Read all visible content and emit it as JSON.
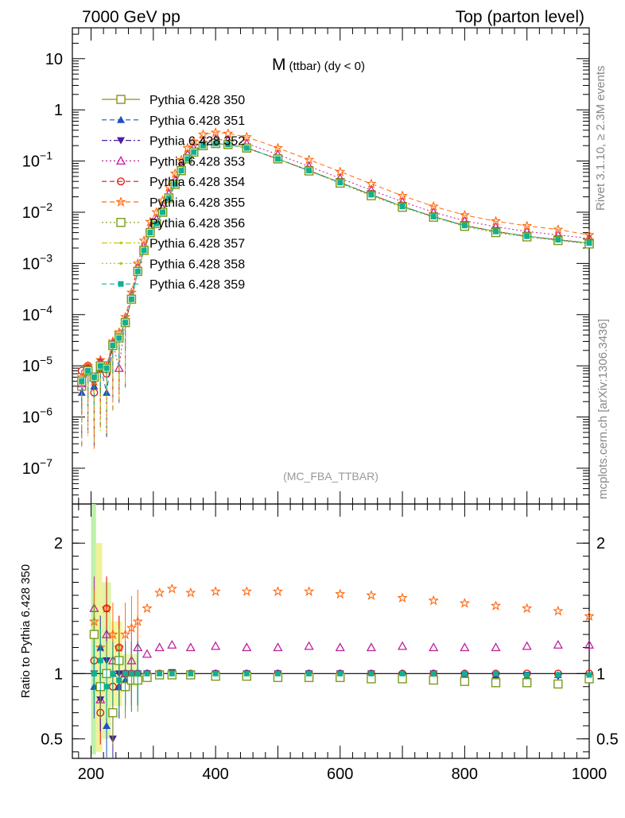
{
  "header": {
    "left": "7000 GeV pp",
    "right": "Top (parton level)"
  },
  "side": {
    "rivet": "Rivet 3.1.10, ≥ 2.3M events",
    "mcplots": "mcplots.cern.ch [arXiv:1306.3436]"
  },
  "chart_data": [
    {
      "type": "line",
      "panel": "main",
      "title_main": "M",
      "title_sub": "(ttbar) (dy < 0)",
      "analysis_label": "(MC_FBA_TTBAR)",
      "xlabel": "",
      "ylabel": "",
      "xlim": [
        170,
        1000
      ],
      "ylim": [
        2e-08,
        40
      ],
      "yscale": "log",
      "x_ticks": [],
      "y_tick_labels": [
        "10",
        "1",
        "10^-1",
        "10^-2",
        "10^-3",
        "10^-4",
        "10^-5",
        "10^-6",
        "10^-7"
      ],
      "legend_position": "top-left",
      "x": [
        185,
        195,
        205,
        215,
        225,
        235,
        245,
        255,
        265,
        275,
        285,
        295,
        305,
        315,
        325,
        335,
        345,
        355,
        365,
        380,
        400,
        420,
        450,
        500,
        550,
        600,
        650,
        700,
        750,
        800,
        850,
        900,
        950,
        1000
      ],
      "series": [
        {
          "name": "Pythia 6.428 350",
          "color": "#8f8f20",
          "marker": "open-square",
          "dash": "solid",
          "values": [
            4e-06,
            8e-06,
            6e-06,
            9e-06,
            1e-05,
            2.5e-05,
            4e-05,
            7e-05,
            0.0002,
            0.0007,
            0.0018,
            0.004,
            0.006,
            0.01,
            0.019,
            0.035,
            0.065,
            0.11,
            0.15,
            0.2,
            0.22,
            0.21,
            0.18,
            0.11,
            0.065,
            0.038,
            0.022,
            0.013,
            0.0082,
            0.0055,
            0.0042,
            0.0034,
            0.0029,
            0.0025
          ]
        },
        {
          "name": "Pythia 6.428 351",
          "color": "#1f4fbf",
          "marker": "filled-triangle-up",
          "dash": "dashed",
          "values": [
            3e-06,
            8e-06,
            4e-06,
            1e-05,
            3e-06,
            2.5e-05,
            3.5e-05,
            7e-05,
            0.0002,
            0.0007,
            0.0018,
            0.004,
            0.006,
            0.01,
            0.019,
            0.035,
            0.065,
            0.11,
            0.15,
            0.2,
            0.22,
            0.21,
            0.18,
            0.11,
            0.065,
            0.038,
            0.022,
            0.013,
            0.0082,
            0.0055,
            0.0042,
            0.0034,
            0.0029,
            0.0025
          ]
        },
        {
          "name": "Pythia 6.428 352",
          "color": "#4a1fa0",
          "marker": "filled-triangle-down",
          "dash": "dashdot",
          "values": [
            5e-06,
            9e-06,
            5e-06,
            1.2e-05,
            8e-06,
            2.5e-05,
            3.5e-05,
            7e-05,
            0.0002,
            0.0007,
            0.0018,
            0.004,
            0.006,
            0.01,
            0.019,
            0.035,
            0.065,
            0.11,
            0.15,
            0.2,
            0.22,
            0.21,
            0.18,
            0.11,
            0.065,
            0.038,
            0.022,
            0.013,
            0.0082,
            0.0055,
            0.0042,
            0.0034,
            0.0029,
            0.0025
          ]
        },
        {
          "name": "Pythia 6.428 353",
          "color": "#c0209a",
          "marker": "open-triangle-up",
          "dash": "dotted",
          "values": [
            4.5e-06,
            9e-06,
            6e-06,
            1.2e-05,
            9e-06,
            2.8e-05,
            9e-06,
            8e-05,
            0.00024,
            0.00085,
            0.0022,
            0.0048,
            0.0073,
            0.012,
            0.023,
            0.042,
            0.079,
            0.134,
            0.18,
            0.24,
            0.265,
            0.255,
            0.22,
            0.134,
            0.079,
            0.046,
            0.027,
            0.016,
            0.01,
            0.0068,
            0.0052,
            0.0042,
            0.0036,
            0.0031
          ]
        },
        {
          "name": "Pythia 6.428 354",
          "color": "#e01010",
          "marker": "open-circle",
          "dash": "dashed",
          "values": [
            8e-06,
            1e-05,
            3e-06,
            9e-06,
            7e-06,
            2.6e-05,
            3.6e-05,
            7e-05,
            0.0002,
            0.0007,
            0.0018,
            0.004,
            0.006,
            0.01,
            0.019,
            0.035,
            0.065,
            0.11,
            0.15,
            0.2,
            0.22,
            0.21,
            0.18,
            0.11,
            0.065,
            0.038,
            0.022,
            0.013,
            0.0082,
            0.0055,
            0.0042,
            0.0034,
            0.0029,
            0.0025
          ]
        },
        {
          "name": "Pythia 6.428 355",
          "color": "#ff6a10",
          "marker": "open-star",
          "dash": "dashed",
          "values": [
            6e-06,
            1e-05,
            5e-06,
            1.3e-05,
            1e-05,
            3e-05,
            4.5e-05,
            9e-05,
            0.00027,
            0.001,
            0.0028,
            0.0065,
            0.01,
            0.017,
            0.031,
            0.057,
            0.105,
            0.18,
            0.24,
            0.33,
            0.36,
            0.345,
            0.295,
            0.18,
            0.106,
            0.062,
            0.036,
            0.021,
            0.013,
            0.0088,
            0.0067,
            0.0054,
            0.0046,
            0.0036
          ]
        },
        {
          "name": "Pythia 6.428 356",
          "color": "#7a9a1a",
          "marker": "open-square",
          "dash": "dotted",
          "values": [
            5e-06,
            8e-06,
            6e-06,
            1e-05,
            9e-06,
            2.5e-05,
            3.5e-05,
            7e-05,
            0.0002,
            0.0007,
            0.0018,
            0.004,
            0.006,
            0.01,
            0.019,
            0.035,
            0.065,
            0.11,
            0.15,
            0.2,
            0.22,
            0.21,
            0.18,
            0.11,
            0.064,
            0.037,
            0.021,
            0.0125,
            0.008,
            0.0053,
            0.004,
            0.0033,
            0.0028,
            0.0024
          ]
        },
        {
          "name": "Pythia 6.428 357",
          "color": "#c8c81a",
          "marker": "dot",
          "dash": "dashdot",
          "values": [
            5e-06,
            8e-06,
            6e-06,
            1e-05,
            9e-06,
            2.5e-05,
            3.5e-05,
            7e-05,
            0.0002,
            0.0007,
            0.0018,
            0.004,
            0.006,
            0.01,
            0.019,
            0.035,
            0.065,
            0.11,
            0.15,
            0.2,
            0.22,
            0.21,
            0.18,
            0.11,
            0.065,
            0.038,
            0.022,
            0.013,
            0.0082,
            0.0055,
            0.0042,
            0.0034,
            0.0029,
            0.0025
          ]
        },
        {
          "name": "Pythia 6.428 358",
          "color": "#a8d01a",
          "marker": "dot",
          "dash": "dotted",
          "values": [
            5e-06,
            8e-06,
            6e-06,
            1e-05,
            9e-06,
            2.5e-05,
            3.5e-05,
            7e-05,
            0.0002,
            0.0007,
            0.0018,
            0.004,
            0.006,
            0.01,
            0.019,
            0.035,
            0.065,
            0.11,
            0.15,
            0.2,
            0.22,
            0.21,
            0.18,
            0.11,
            0.065,
            0.038,
            0.022,
            0.013,
            0.0082,
            0.0055,
            0.0042,
            0.0034,
            0.0029,
            0.0025
          ]
        },
        {
          "name": "Pythia 6.428 359",
          "color": "#10b090",
          "marker": "filled-square",
          "dash": "dashed",
          "values": [
            5e-06,
            8e-06,
            6e-06,
            1e-05,
            9e-06,
            2.5e-05,
            3.5e-05,
            7e-05,
            0.0002,
            0.0007,
            0.0018,
            0.004,
            0.006,
            0.01,
            0.019,
            0.035,
            0.065,
            0.11,
            0.15,
            0.2,
            0.22,
            0.21,
            0.18,
            0.11,
            0.065,
            0.038,
            0.022,
            0.013,
            0.0082,
            0.0055,
            0.0042,
            0.0034,
            0.0029,
            0.0025
          ]
        }
      ]
    },
    {
      "type": "scatter",
      "panel": "ratio",
      "ylabel": "Ratio to Pythia 6.428 350",
      "xlim": [
        170,
        1000
      ],
      "ylim": [
        0.35,
        2.3
      ],
      "reference_line": 1,
      "x_tick_labels": [
        "200",
        "400",
        "600",
        "800",
        "1000"
      ],
      "y_tick_labels": [
        "2",
        "1",
        "0.5"
      ],
      "x": [
        205,
        215,
        225,
        235,
        245,
        255,
        265,
        275,
        290,
        310,
        330,
        360,
        400,
        450,
        500,
        550,
        600,
        650,
        700,
        750,
        800,
        850,
        900,
        950,
        1000
      ],
      "series": [
        {
          "name": "Pythia 6.428 353",
          "color": "#c0209a",
          "marker": "open-triangle-up",
          "values": [
            1.5,
            0.8,
            1.3,
            1.1,
            0.9,
            1.0,
            1.1,
            1.2,
            1.15,
            1.2,
            1.22,
            1.2,
            1.21,
            1.2,
            1.2,
            1.21,
            1.2,
            1.2,
            1.21,
            1.2,
            1.2,
            1.2,
            1.21,
            1.22,
            1.22
          ]
        },
        {
          "name": "Pythia 6.428 355",
          "color": "#ff6a10",
          "marker": "open-star",
          "values": [
            1.4,
            1.2,
            1.5,
            1.3,
            1.2,
            1.3,
            1.35,
            1.4,
            1.5,
            1.62,
            1.65,
            1.62,
            1.63,
            1.63,
            1.63,
            1.63,
            1.61,
            1.6,
            1.58,
            1.56,
            1.54,
            1.52,
            1.5,
            1.48,
            1.44
          ]
        },
        {
          "name": "Pythia 6.428 354",
          "color": "#e01010",
          "marker": "open-circle",
          "values": [
            1.1,
            0.7,
            1.5,
            0.9,
            1.2,
            1.0,
            1.0,
            1.0,
            1.0,
            1.0,
            1.0,
            1.0,
            1.0,
            1.0,
            1.0,
            1.0,
            1.0,
            1.0,
            1.0,
            1.0,
            1.0,
            1.0,
            1.0,
            1.0,
            1.0
          ]
        },
        {
          "name": "Pythia 6.428 351",
          "color": "#1f4fbf",
          "marker": "filled-triangle-up",
          "values": [
            0.9,
            1.2,
            0.6,
            1.0,
            0.9,
            0.95,
            1.0,
            1.0,
            1.0,
            1.0,
            1.0,
            1.0,
            1.0,
            1.0,
            1.0,
            1.0,
            1.0,
            0.99,
            1.0,
            0.99,
            1.0,
            0.99,
            0.98,
            0.99,
            0.98
          ]
        },
        {
          "name": "Pythia 6.428 352",
          "color": "#4a1fa0",
          "marker": "filled-triangle-down",
          "values": [
            1.0,
            0.8,
            1.1,
            0.5,
            1.0,
            1.0,
            0.95,
            1.0,
            1.0,
            1.0,
            1.01,
            1.0,
            1.0,
            1.0,
            1.0,
            1.0,
            1.0,
            1.0,
            0.99,
            1.0,
            0.99,
            0.99,
            0.99,
            0.98,
            0.98
          ]
        },
        {
          "name": "Pythia 6.428 356",
          "color": "#7a9a1a",
          "marker": "open-square",
          "values": [
            1.3,
            0.9,
            1.0,
            0.7,
            1.1,
            0.9,
            0.95,
            0.95,
            0.97,
            0.99,
            0.99,
            0.99,
            0.98,
            0.98,
            0.97,
            0.97,
            0.97,
            0.96,
            0.96,
            0.95,
            0.94,
            0.93,
            0.93,
            0.92,
            0.96
          ]
        },
        {
          "name": "Pythia 6.428 359",
          "color": "#10b090",
          "marker": "filled-square",
          "values": [
            1.0,
            1.1,
            0.9,
            1.0,
            0.95,
            1.0,
            1.0,
            1.0,
            1.0,
            1.0,
            1.0,
            1.0,
            1.0,
            1.0,
            1.0,
            1.0,
            1.0,
            1.0,
            1.0,
            1.0,
            1.0,
            1.0,
            0.99,
            0.99,
            0.99
          ]
        }
      ]
    }
  ]
}
